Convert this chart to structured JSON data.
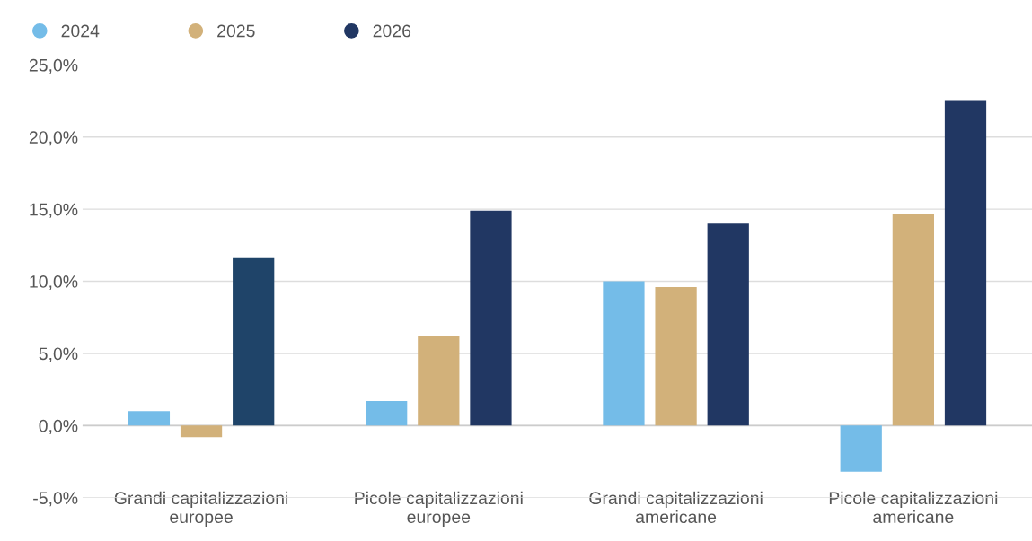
{
  "chart_data": {
    "type": "bar",
    "categories": [
      "Grandi capitalizzazioni europee",
      "Picole capitalizzazioni europee",
      "Grandi capitalizzazioni americane",
      "Picole capitalizzazioni americane"
    ],
    "series": [
      {
        "name": "2024",
        "color": "#74bce8",
        "values": [
          1.0,
          1.7,
          10.0,
          -3.2
        ]
      },
      {
        "name": "2025",
        "color": "#d2b17a",
        "values": [
          -0.8,
          6.2,
          9.6,
          14.7
        ]
      },
      {
        "name": "2026",
        "color": "#213763",
        "colors": [
          "#1f4469",
          "#213763",
          "#213763",
          "#213763"
        ],
        "values": [
          11.6,
          14.9,
          14.0,
          22.5
        ]
      }
    ],
    "ylim": [
      -5,
      25
    ],
    "yticks": [
      {
        "value": -5,
        "label": "-5,0%"
      },
      {
        "value": 0,
        "label": "0,0%"
      },
      {
        "value": 5,
        "label": "5,0%"
      },
      {
        "value": 10,
        "label": "10,0%"
      },
      {
        "value": 15,
        "label": "15,0%"
      },
      {
        "value": 20,
        "label": "20,0%"
      },
      {
        "value": 25,
        "label": "25,0%"
      }
    ],
    "grid": "y",
    "legend": "top left"
  }
}
